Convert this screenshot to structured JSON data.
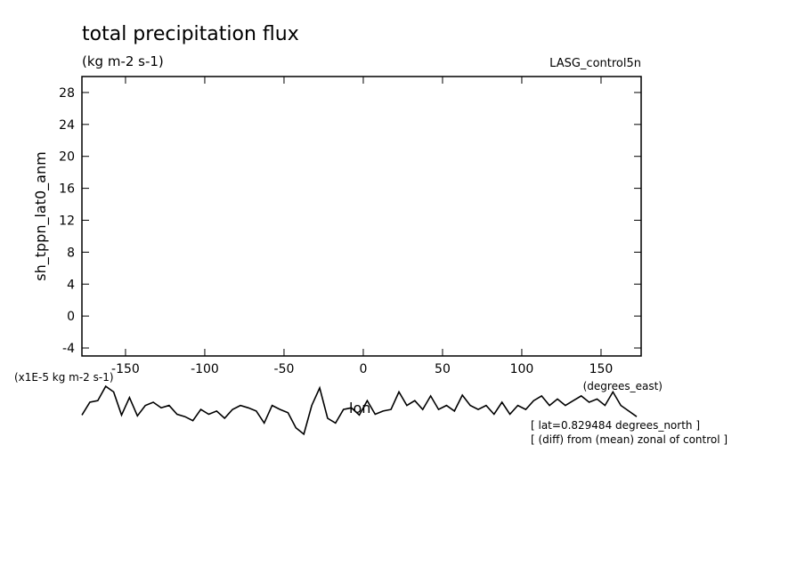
{
  "chart_data": {
    "type": "line",
    "title": "total precipitation flux",
    "subtitle": "(kg m-2 s-1)",
    "dataset": "LASG_control5n",
    "y_label": "sh_tppn_lat0_anm",
    "y_scale_label": "(x1E-5 kg m-2 s-1)",
    "x_label": "lon",
    "x_units": "(degrees_east)",
    "notes": [
      "[ lat=0.829484 degrees_north ]",
      "[ (diff) from (mean) zonal of control ]"
    ],
    "color": "#000000",
    "xlim": [
      -177.5,
      175.3
    ],
    "ylim": [
      -5,
      30
    ],
    "xticks": [
      -150,
      -100,
      -50,
      0,
      50,
      100,
      150
    ],
    "yticks": [
      -4,
      0,
      4,
      8,
      12,
      16,
      20,
      24,
      28
    ],
    "x": [
      -177.5,
      -172.5,
      -167.5,
      -162.5,
      -157.5,
      -152.5,
      -147.5,
      -142.5,
      -137.5,
      -132.5,
      -127.5,
      -122.5,
      -117.5,
      -112.5,
      -107.5,
      -102.5,
      -97.5,
      -92.5,
      -87.5,
      -82.5,
      -77.5,
      -72.5,
      -67.5,
      -62.5,
      -57.5,
      -52.5,
      -47.5,
      -42.5,
      -37.5,
      -32.5,
      -27.5,
      -22.5,
      -17.5,
      -12.5,
      -7.5,
      -2.5,
      2.5,
      7.5,
      12.5,
      17.5,
      22.5,
      27.5,
      32.5,
      37.5,
      42.5,
      47.5,
      52.5,
      57.5,
      62.5,
      67.5,
      72.5,
      77.5,
      82.5,
      87.5,
      92.5,
      97.5,
      102.5,
      107.5,
      112.5,
      117.5,
      122.5,
      127.5,
      132.5,
      137.5,
      142.5,
      147.5,
      152.5,
      157.5,
      162.5,
      167.5,
      172.5
    ],
    "values": [
      -12.4,
      -10.8,
      -10.6,
      -8.8,
      -9.5,
      -12.4,
      -10.2,
      -12.5,
      -11.2,
      -10.8,
      -11.5,
      -11.2,
      -12.3,
      -12.6,
      -13.1,
      -11.7,
      -12.3,
      -11.9,
      -12.8,
      -11.7,
      -11.2,
      -11.5,
      -11.9,
      -13.4,
      -11.2,
      -11.7,
      -12.1,
      -14.0,
      -14.8,
      -11.2,
      -9.0,
      -12.8,
      -13.4,
      -11.7,
      -11.5,
      -12.4,
      -10.6,
      -12.3,
      -11.9,
      -11.7,
      -9.5,
      -11.2,
      -10.6,
      -11.7,
      -10.0,
      -11.7,
      -11.2,
      -11.9,
      -9.9,
      -11.2,
      -11.7,
      -11.2,
      -12.3,
      -10.8,
      -12.3,
      -11.2,
      -11.7,
      -10.6,
      -10.0,
      -11.2,
      -10.4,
      -11.2,
      -10.6,
      -10.0,
      -10.8,
      -10.4,
      -11.2,
      -9.5,
      -11.2,
      -11.9,
      -12.6
    ]
  }
}
